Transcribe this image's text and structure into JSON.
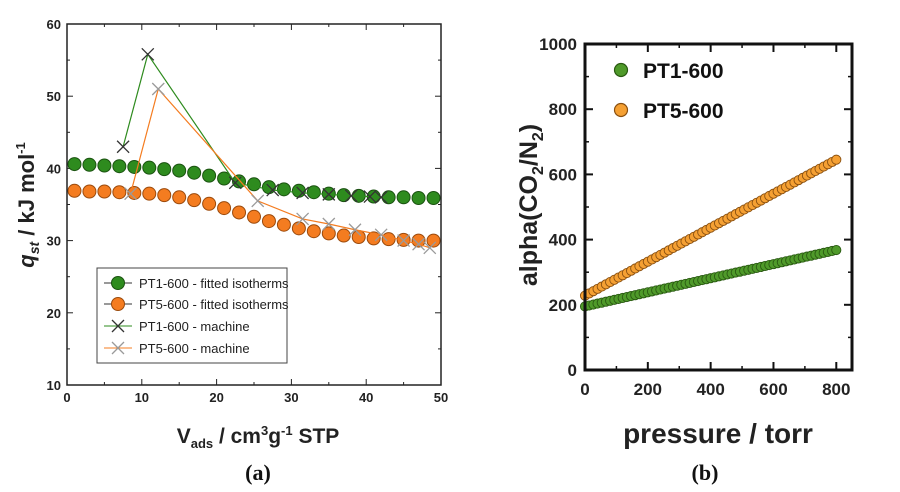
{
  "chart_data": [
    {
      "type": "line",
      "panel_label": "(a)",
      "xlabel": {
        "main": "V",
        "sub": "ads",
        "rest1": " / cm",
        "sup1": "3",
        "rest2": "g",
        "sup2": "-1",
        "rest3": " STP"
      },
      "ylabel": {
        "main": "q",
        "sub": "st",
        "rest": " / kJ mol",
        "sup": "-1"
      },
      "xlim": [
        0,
        50
      ],
      "ylim": [
        10,
        60
      ],
      "xticks": [
        "0",
        "10",
        "20",
        "30",
        "40",
        "50"
      ],
      "yticks": [
        "10",
        "20",
        "30",
        "40",
        "50",
        "60"
      ],
      "legend_position": "lower-center",
      "series": [
        {
          "name": "PT1-600 - fitted isotherms",
          "style": "filled-circle-markers",
          "color": "#2e8b1e",
          "x": [
            1,
            3,
            5,
            7,
            9,
            11,
            13,
            15,
            17,
            19,
            21,
            23,
            25,
            27,
            29,
            31,
            33,
            35,
            37,
            39,
            41,
            43,
            45,
            47,
            49
          ],
          "y": [
            40.6,
            40.5,
            40.4,
            40.3,
            40.2,
            40.1,
            39.9,
            39.7,
            39.4,
            39.0,
            38.6,
            38.2,
            37.8,
            37.4,
            37.1,
            36.9,
            36.7,
            36.5,
            36.3,
            36.2,
            36.1,
            36.0,
            36.0,
            35.9,
            35.9
          ]
        },
        {
          "name": "PT5-600 - fitted isotherms",
          "style": "filled-circle-markers",
          "color": "#f47c20",
          "x": [
            1,
            3,
            5,
            7,
            9,
            11,
            13,
            15,
            17,
            19,
            21,
            23,
            25,
            27,
            29,
            31,
            33,
            35,
            37,
            39,
            41,
            43,
            45,
            47,
            49
          ],
          "y": [
            36.9,
            36.8,
            36.8,
            36.7,
            36.6,
            36.5,
            36.3,
            36.0,
            35.6,
            35.1,
            34.5,
            33.9,
            33.3,
            32.7,
            32.2,
            31.7,
            31.3,
            31.0,
            30.7,
            30.5,
            30.3,
            30.2,
            30.1,
            30.0,
            30.0
          ]
        },
        {
          "name": "PT1-600 - machine",
          "style": "x-markers-line",
          "color": "#2e8b1e",
          "marker_color": "#333333",
          "x": [
            7.5,
            10.8,
            22.5,
            27.5,
            31.5,
            35.0,
            38.0,
            40.5,
            42.0
          ],
          "y": [
            43.0,
            55.8,
            38.0,
            37.0,
            36.6,
            36.4,
            36.2,
            36.1,
            36.0
          ]
        },
        {
          "name": "PT5-600 - machine",
          "style": "x-markers-line",
          "color": "#f47c20",
          "marker_color": "#9a9a9a",
          "x": [
            8.5,
            12.2,
            25.5,
            31.5,
            35.0,
            38.5,
            42.0,
            45.0,
            47.0,
            48.5
          ],
          "y": [
            36.5,
            51.0,
            35.5,
            33.0,
            32.3,
            31.5,
            30.8,
            30.0,
            29.5,
            29.0
          ]
        }
      ]
    },
    {
      "type": "scatter",
      "panel_label": "(b)",
      "xlabel": "pressure / torr",
      "ylabel": {
        "main": "alpha(CO",
        "sub1": "2",
        "mid": "/N",
        "sub2": "2",
        "end": ")"
      },
      "xlim": [
        0,
        850
      ],
      "ylim": [
        0,
        1000
      ],
      "xticks": [
        "0",
        "200",
        "400",
        "600",
        "800"
      ],
      "yticks": [
        "0",
        "200",
        "400",
        "600",
        "800",
        "1000"
      ],
      "legend_position": "top-left",
      "series": [
        {
          "name": "PT1-600",
          "color": "#4f9a2a",
          "x_start": 0,
          "x_end": 800,
          "y_start": 195,
          "y_end": 368
        },
        {
          "name": "PT5-600",
          "color": "#f5a033",
          "x_start": 0,
          "x_end": 800,
          "y_start": 228,
          "y_end": 645
        }
      ]
    }
  ]
}
